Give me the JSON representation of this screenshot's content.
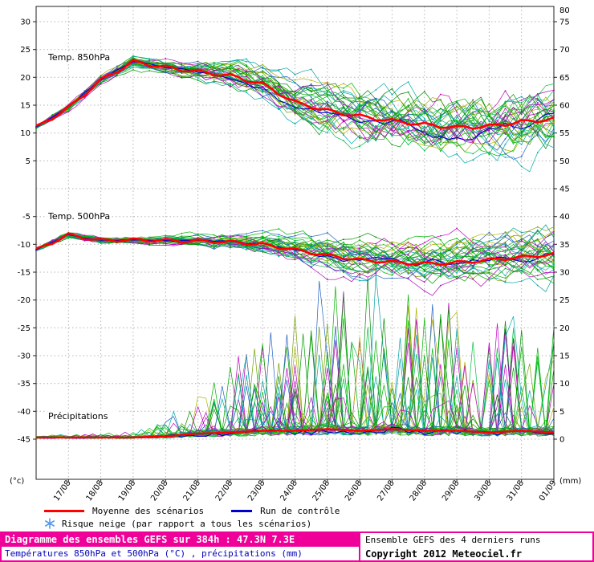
{
  "chart_data": {
    "type": "line",
    "title": "Diagramme des ensembles GEFS sur 384h : 47.3N 7.3E",
    "subtitle": "Températures 850hPa et 500hPa (°C) , précipitations (mm)",
    "grid": true,
    "grid_color": "#b4b4b4",
    "frame_color": "#222222",
    "x_axis": {
      "hours_start": 0,
      "hours_end": 384,
      "step_hours": 6,
      "tick_every_hours": 24,
      "tick_labels": [
        "17/08",
        "18/08",
        "19/08",
        "20/08",
        "21/08",
        "22/08",
        "23/08",
        "24/08",
        "25/08",
        "26/08",
        "27/08",
        "28/08",
        "29/08",
        "30/08",
        "31/08",
        "01/09"
      ]
    },
    "left_axis": {
      "unit_label": "(°c)",
      "ticks": [
        30,
        25,
        20,
        15,
        10,
        5,
        -5,
        -10,
        -15,
        -20,
        -25,
        -30,
        -35,
        -40,
        -45
      ],
      "range": [
        -45,
        30
      ]
    },
    "right_axis": {
      "unit_label": "(mm)",
      "ticks": [
        80,
        75,
        70,
        65,
        60,
        55,
        50,
        45,
        40,
        35,
        30,
        25,
        20,
        15,
        10,
        5,
        0
      ],
      "range": [
        0,
        80
      ]
    },
    "panels": [
      {
        "id": "t850",
        "label": "Temp. 850hPa",
        "unit": "°C",
        "axis": "left",
        "mean_24h": [
          11,
          14.5,
          19.5,
          22.8,
          21.8,
          21.0,
          20.3,
          18.8,
          15.5,
          14.0,
          13.0,
          12.2,
          11.5,
          11.0,
          11.2,
          12.0,
          12.5
        ],
        "spread_24h": [
          0.4,
          0.6,
          0.7,
          0.8,
          1.0,
          1.5,
          2.0,
          2.6,
          3.2,
          3.8,
          4.2,
          4.6,
          4.8,
          5.0,
          5.2,
          5.4,
          5.5
        ]
      },
      {
        "id": "t500",
        "label": "Temp. 500hPa",
        "unit": "°C",
        "axis": "left",
        "mean_24h": [
          -11,
          -8.3,
          -9.3,
          -9.2,
          -9.3,
          -9.4,
          -9.6,
          -10.0,
          -11.0,
          -12.0,
          -12.8,
          -13.2,
          -13.5,
          -13.3,
          -12.8,
          -12.3,
          -11.8
        ],
        "spread_24h": [
          0.3,
          0.5,
          0.5,
          0.5,
          0.6,
          0.8,
          1.0,
          1.5,
          2.0,
          2.5,
          2.8,
          3.0,
          3.2,
          3.4,
          3.5,
          3.8,
          4.0
        ]
      },
      {
        "id": "precip",
        "label": "Précipitations",
        "unit": "mm",
        "axis": "right",
        "mean_24h": [
          0.3,
          0.3,
          0.3,
          0.3,
          0.5,
          1.0,
          1.2,
          1.5,
          1.5,
          1.8,
          1.5,
          1.8,
          1.5,
          1.5,
          1.2,
          1.5,
          1.2
        ],
        "spread_24h": [
          0.2,
          0.2,
          0.3,
          0.5,
          1.5,
          4,
          6,
          9,
          11,
          13,
          13,
          13,
          11,
          11,
          9,
          11,
          9
        ]
      }
    ],
    "ensemble": {
      "member_count": 34,
      "seed": 42,
      "member_colors": [
        "#00a000",
        "#b000b0",
        "#00b400",
        "#00aaaa",
        "#008c00",
        "#b0b000",
        "#00c040",
        "#2060c0",
        "#00b400",
        "#c000c0",
        "#00a0a0",
        "#70a000"
      ],
      "mean_color": "#ff0000",
      "control_color": "#0000cc"
    },
    "legend_position": "bottom"
  },
  "legend": {
    "mean_label": "Moyenne des scénarios",
    "control_label": "Run de contrôle",
    "snow_label": "Risque neige (par rapport a tous les scénarios)",
    "snow_icon_color": "#5599ee"
  },
  "footer": {
    "title": "Diagramme des ensembles GEFS sur 384h : 47.3N 7.3E",
    "subtitle": "Températures 850hPa et 500hPa (°C) , précipitations (mm)",
    "right_line1": "Ensemble GEFS des 4 derniers runs",
    "right_line2": "Copyright 2012 Meteociel.fr",
    "accent_color": "#ee0099",
    "subtitle_color": "#0000bb"
  }
}
